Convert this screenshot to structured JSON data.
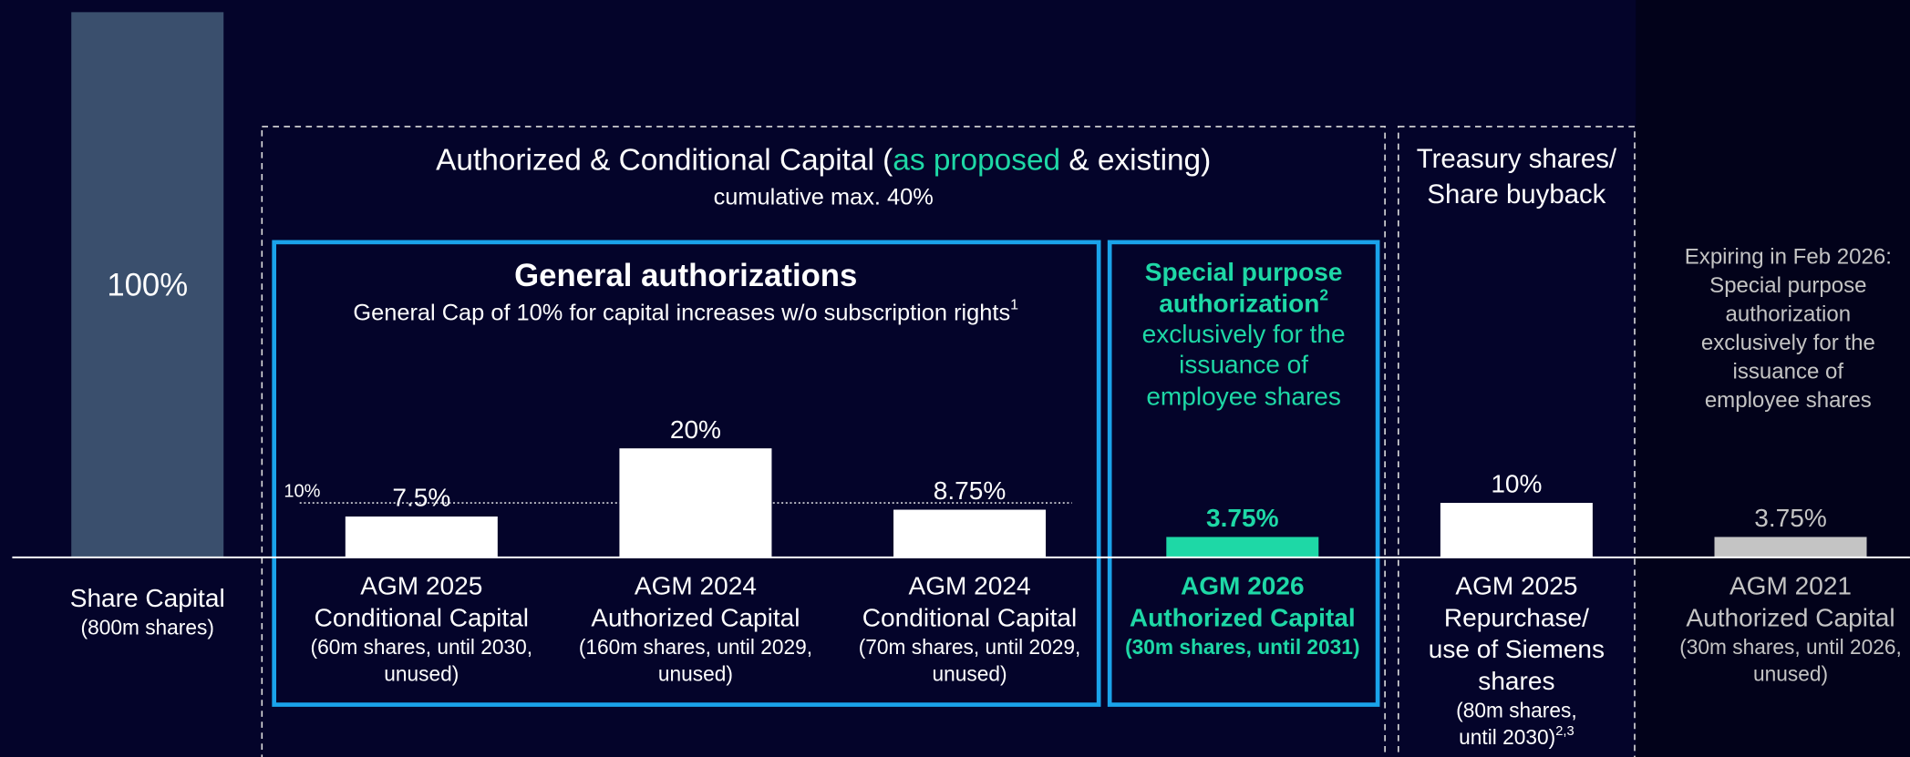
{
  "chart_data": {
    "type": "bar",
    "header": {
      "title_parts": [
        "Authorized & Conditional Capital (",
        "as proposed",
        " & existing)"
      ],
      "subtitle": "cumulative max. 40%"
    },
    "general": {
      "title": "General authorizations",
      "subtitle": "General Cap of 10% for capital increases w/o subscription rights",
      "sup": "1"
    },
    "special": {
      "lines": [
        "Special purpose",
        "authorization",
        "exclusively for the",
        "issuance of",
        "employee shares"
      ],
      "sup": "2"
    },
    "treasury": {
      "lines": [
        "Treasury shares/",
        "Share buyback"
      ]
    },
    "expiring": {
      "lines": [
        "Expiring in Feb 2026:",
        "Special purpose",
        "authorization",
        "exclusively for the",
        "issuance of",
        "employee shares"
      ]
    },
    "categories": [
      [
        "Share Capital"
      ],
      [
        "AGM 2025",
        "Conditional Capital"
      ],
      [
        "AGM 2024",
        "Authorized Capital"
      ],
      [
        "AGM 2024",
        "Conditional Capital"
      ],
      [
        "AGM 2026",
        "Authorized Capital"
      ],
      [
        "AGM 2025",
        "Repurchase/",
        "use of Siemens",
        "shares"
      ],
      [
        "AGM 2021",
        "Authorized Capital"
      ]
    ],
    "category_details": [
      [
        "(800m shares)"
      ],
      [
        "(60m shares, until 2030,",
        "unused)"
      ],
      [
        "(160m shares, until 2029,",
        "unused)"
      ],
      [
        "(70m shares, until 2029,",
        "unused)"
      ],
      [
        "(30m shares, until 2031)"
      ],
      [
        "(80m shares,",
        "until 2030)"
      ],
      [
        "(30m shares, until 2026,",
        "unused)"
      ]
    ],
    "category_notes": [
      null,
      null,
      null,
      null,
      null,
      "2,3",
      null
    ],
    "values": [
      100,
      7.5,
      20,
      8.75,
      3.75,
      10,
      3.75
    ],
    "value_labels": [
      "100%",
      "7.5%",
      "20%",
      "8.75%",
      "3.75%",
      "10%",
      "3.75%"
    ],
    "colors": [
      "#3a4f6d",
      "#ffffff",
      "#ffffff",
      "#ffffff",
      "#1ed8a6",
      "#ffffff",
      "#c4c4c4"
    ],
    "label_colors": [
      "#ffffff",
      "#ffffff",
      "#ffffff",
      "#ffffff",
      "#1ed8a6",
      "#ffffff",
      "#c4c4c4"
    ],
    "reference_line": {
      "value": 10,
      "label": "10%"
    },
    "ylim": [
      0,
      100
    ]
  }
}
